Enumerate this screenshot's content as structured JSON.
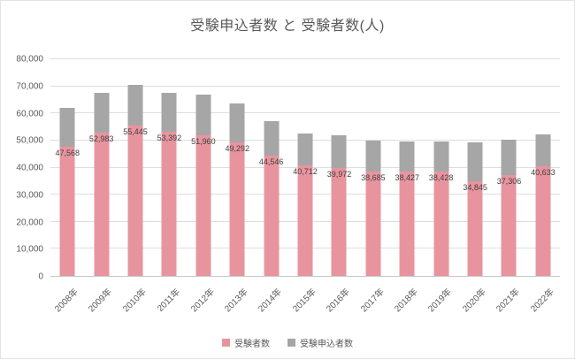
{
  "chart_data": {
    "type": "bar",
    "title": "受験申込者数 と 受験者数(人)",
    "categories": [
      "2008年",
      "2009年",
      "2010年",
      "2011年",
      "2012年",
      "2013年",
      "2014年",
      "2015年",
      "2016年",
      "2017年",
      "2018年",
      "2019年",
      "2020年",
      "2021年",
      "2022年"
    ],
    "series": [
      {
        "name": "受験者数",
        "color": "#e8949e",
        "values": [
          47568,
          52983,
          55445,
          53392,
          51960,
          49292,
          44546,
          40712,
          39972,
          38685,
          38427,
          38428,
          34845,
          37306,
          40633
        ],
        "labels": [
          "47,568",
          "52,983",
          "55,445",
          "53,392",
          "51,960",
          "49,292",
          "44,546",
          "40,712",
          "39,972",
          "38,685",
          "38,427",
          "38,428",
          "34,845",
          "37,306",
          "40,633"
        ]
      },
      {
        "name": "受験申込者数",
        "color": "#a6a6a6",
        "values": [
          61900,
          67700,
          70600,
          67700,
          66800,
          63600,
          57200,
          52600,
          52000,
          49900,
          49600,
          49600,
          49300,
          50400,
          52300
        ]
      }
    ],
    "ylim": [
      0,
      80000
    ],
    "ytick_step": 10000,
    "ytick_labels": [
      "0",
      "10,000",
      "20,000",
      "30,000",
      "40,000",
      "50,000",
      "60,000",
      "70,000",
      "80,000"
    ],
    "grid": true,
    "legend_position": "bottom",
    "legend": [
      "受験者数",
      "受験申込者数"
    ]
  }
}
